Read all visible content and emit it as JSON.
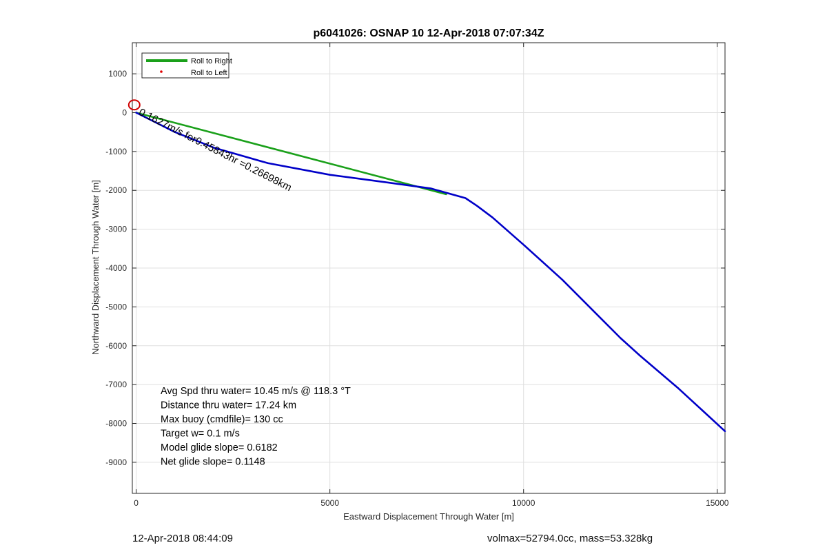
{
  "chart_data": {
    "type": "line",
    "title": "p6041026: OSNAP 10 12-Apr-2018 07:07:34Z",
    "xlabel": "Eastward Displacement Through Water [m]",
    "ylabel": "Northward Displacement Through Water [m]",
    "xlim": [
      -100,
      15200
    ],
    "ylim": [
      -9800,
      1800
    ],
    "xticks": [
      0,
      5000,
      10000,
      15000
    ],
    "yticks": [
      1000,
      0,
      -1000,
      -2000,
      -3000,
      -4000,
      -5000,
      -6000,
      -7000,
      -8000,
      -9000
    ],
    "grid": true,
    "legend": {
      "placement": "top-left",
      "entries": [
        {
          "label": "Roll to Right",
          "color": "#1aa01a",
          "style": "line"
        },
        {
          "label": "Roll to Left",
          "color": "#e00000",
          "style": "point"
        }
      ]
    },
    "series": [
      {
        "color": "#0000c8",
        "x": [
          0,
          400,
          1000,
          2000,
          3400,
          5000,
          6500,
          7600,
          8500,
          8800,
          9200,
          10000,
          11000,
          12000,
          12500,
          13000,
          14000,
          15200
        ],
        "y": [
          0,
          -200,
          -500,
          -900,
          -1300,
          -1600,
          -1800,
          -1950,
          -2200,
          -2400,
          -2700,
          -3400,
          -4300,
          -5300,
          -5800,
          -6250,
          -7100,
          -8200
        ]
      },
      {
        "color": "#1aa01a",
        "x": [
          0,
          8000
        ],
        "y": [
          0,
          -2100
        ]
      }
    ],
    "start_marker": {
      "x": -50,
      "y": 200,
      "color": "#d00000"
    },
    "current_label": {
      "text": "0.1627m/s for0.45843hr =0.26698km",
      "x": 50,
      "y": -40,
      "angle_deg": 27
    },
    "annotations": [
      "Avg Spd thru water= 10.45 m/s @ 118.3 °T",
      "Distance thru water= 17.24 km",
      "Max buoy (cmdfile)= 130 cc",
      "Target w= 0.1 m/s",
      "Model glide slope= 0.6182",
      "Net glide slope= 0.1148"
    ]
  },
  "footer": {
    "timestamp": "12-Apr-2018 08:44:09",
    "stats": "volmax=52794.0cc, mass=53.328kg"
  }
}
